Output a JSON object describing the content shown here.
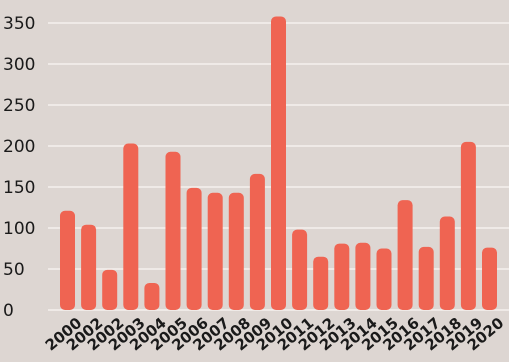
{
  "chart_data": {
    "type": "bar",
    "title": "",
    "xlabel": "",
    "ylabel": "",
    "categories": [
      "2000",
      "2002",
      "2002",
      "2003",
      "2004",
      "2005",
      "2006",
      "2007",
      "2008",
      "2009",
      "2010",
      "2011",
      "2012",
      "2013",
      "2014",
      "2015",
      "2016",
      "2017",
      "2018",
      "2019",
      "2020"
    ],
    "values": [
      121,
      104,
      49,
      203,
      33,
      193,
      149,
      143,
      143,
      166,
      358,
      98,
      65,
      81,
      82,
      75,
      134,
      77,
      114,
      205,
      76
    ],
    "yticks": [
      0,
      50,
      100,
      150,
      200,
      250,
      300,
      350
    ],
    "ylim": [
      0,
      360
    ],
    "grid": "horizontal",
    "legend": "none",
    "colors": {
      "bar": "#ef6452",
      "background": "#ddd6d2",
      "grid": "#f5f1ee",
      "text": "#1a1a1a"
    }
  }
}
